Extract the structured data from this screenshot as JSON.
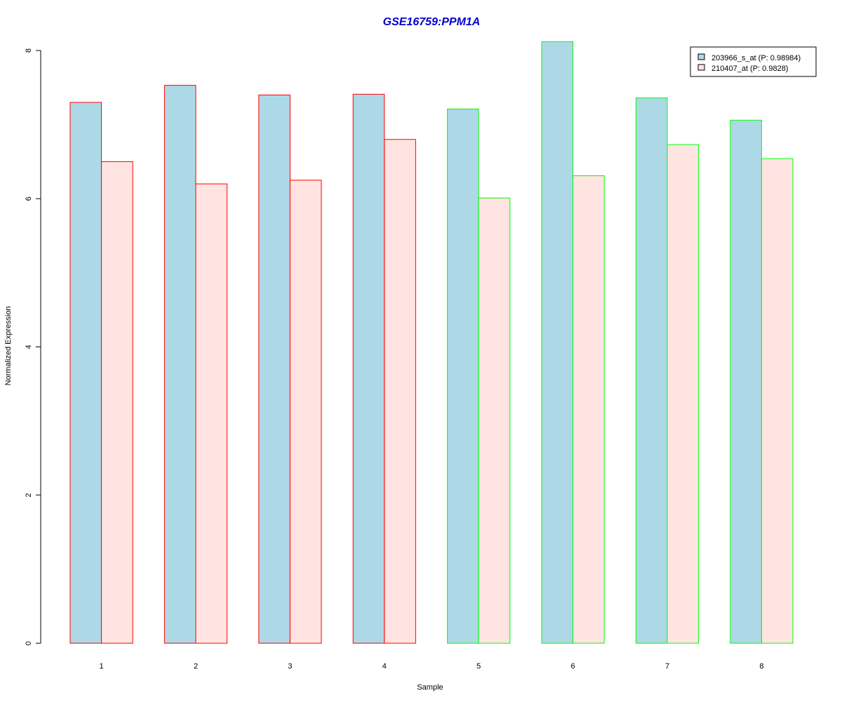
{
  "chart_data": {
    "type": "bar",
    "title": "GSE16759:PPM1A",
    "xlabel": "Sample",
    "ylabel": "Normalized Expression",
    "categories": [
      "1",
      "2",
      "3",
      "4",
      "5",
      "6",
      "7",
      "8"
    ],
    "series": [
      {
        "name": "203966_s_at (P: 0.98984)",
        "values": [
          7.3,
          7.53,
          7.4,
          7.41,
          7.21,
          8.12,
          7.36,
          7.06
        ],
        "fill": "#add8e6"
      },
      {
        "name": "210407_at (P: 0.9828)",
        "values": [
          6.5,
          6.2,
          6.25,
          6.8,
          6.01,
          6.31,
          6.73,
          6.54
        ],
        "fill": "#ffe4e1"
      }
    ],
    "group_border_colors": [
      "#ff0000",
      "#ff0000",
      "#ff0000",
      "#ff0000",
      "#00ff00",
      "#00ff00",
      "#00ff00",
      "#00ff00"
    ],
    "yticks": [
      0,
      2,
      4,
      6,
      8
    ],
    "ylim": [
      0,
      8
    ],
    "title_color": "#0000cd",
    "legend_position": "top-right",
    "grid": false
  }
}
